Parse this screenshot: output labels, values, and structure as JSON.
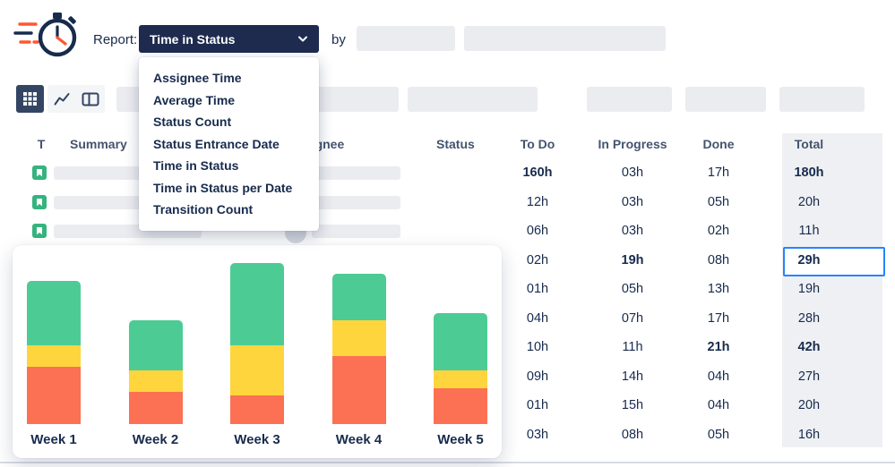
{
  "header": {
    "report_label": "Report:",
    "report_dropdown_value": "Time in Status",
    "by_label": "by"
  },
  "dropdown_menu": {
    "selected": "Time in Status",
    "items": [
      "Assignee Time",
      "Average Time",
      "Status Count",
      "Status Entrance Date",
      "Time in Status",
      "Time in Status per Date",
      "Transition Count"
    ]
  },
  "toolbar": {
    "views": [
      "grid-view",
      "chart-view",
      "board-view"
    ],
    "active_view": "grid-view"
  },
  "icons": {
    "logo": "stopwatch-with-speed-lines",
    "dropdown": "chevron-down",
    "grid": "grid-view-icon",
    "chart": "line-chart-icon",
    "board": "board-view-icon",
    "row_type": "green-story-icon",
    "avatar": "avatar-circle-placeholder"
  },
  "table": {
    "columns": [
      "T",
      "Summary",
      "Assignee",
      "Status",
      "To Do",
      "In Progress",
      "Done",
      "Total"
    ],
    "rows": [
      {
        "todo": "160h",
        "in_progress": "03h",
        "done": "17h",
        "total": "180h",
        "bold": [
          "todo",
          "total"
        ],
        "placeholders": true
      },
      {
        "todo": "12h",
        "in_progress": "03h",
        "done": "05h",
        "total": "20h",
        "bold": [],
        "placeholders": true
      },
      {
        "todo": "06h",
        "in_progress": "03h",
        "done": "02h",
        "total": "11h",
        "bold": [],
        "placeholders": true,
        "avatar": true
      },
      {
        "todo": "02h",
        "in_progress": "19h",
        "done": "08h",
        "total": "29h",
        "bold": [
          "in_progress",
          "total"
        ],
        "selected": "total"
      },
      {
        "todo": "01h",
        "in_progress": "05h",
        "done": "13h",
        "total": "19h",
        "bold": []
      },
      {
        "todo": "04h",
        "in_progress": "07h",
        "done": "17h",
        "total": "28h",
        "bold": []
      },
      {
        "todo": "10h",
        "in_progress": "11h",
        "done": "21h",
        "total": "42h",
        "bold": [
          "done",
          "total"
        ]
      },
      {
        "todo": "09h",
        "in_progress": "14h",
        "done": "04h",
        "total": "27h",
        "bold": []
      },
      {
        "todo": "01h",
        "in_progress": "15h",
        "done": "04h",
        "total": "20h",
        "bold": []
      },
      {
        "todo": "03h",
        "in_progress": "08h",
        "done": "05h",
        "total": "16h",
        "bold": []
      }
    ]
  },
  "chart_data": {
    "type": "bar",
    "stacked": true,
    "categories": [
      "Week 1",
      "Week 2",
      "Week 3",
      "Week 4",
      "Week 5"
    ],
    "series": [
      {
        "name": "orange-bottom",
        "color": "#FC7153",
        "values": [
          16,
          9,
          8,
          19,
          10
        ]
      },
      {
        "name": "yellow-middle",
        "color": "#FFD53D",
        "values": [
          6,
          6,
          14,
          10,
          5
        ]
      },
      {
        "name": "green-top",
        "color": "#4DCB94",
        "values": [
          18,
          14,
          23,
          13,
          16
        ]
      }
    ],
    "ylim": [
      0,
      46
    ],
    "title": "",
    "xlabel": "",
    "ylabel": "",
    "legend": false,
    "grid": false
  },
  "colors": {
    "navy": "#172B4D",
    "header_text": "#44546F",
    "dropdown_bg": "#1E2B4F",
    "placeholder": "#EBECF0",
    "total_column_bg": "#EFF0F3",
    "selected_border": "#2684FF",
    "story_green": "#36B37E",
    "accent_orange": "#FF5630"
  }
}
